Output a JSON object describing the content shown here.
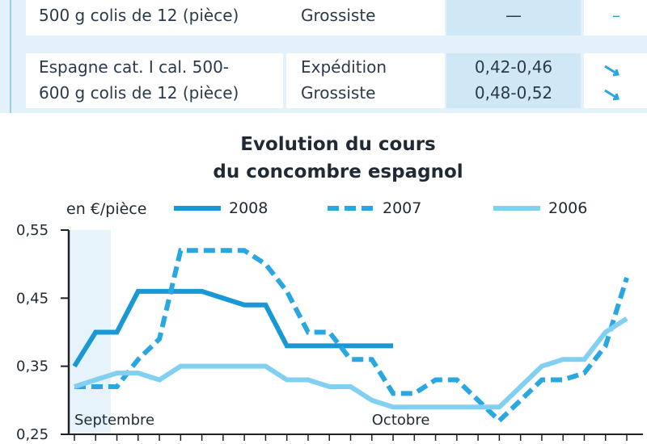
{
  "table": {
    "rows": [
      {
        "product": [
          "500 g colis de 12 (pièce)"
        ],
        "stage": [
          "Grossiste"
        ],
        "price": [
          "—"
        ],
        "trend": "–"
      },
      {
        "product": [
          "Espagne cat. I cal. 500-",
          "600 g colis de 12 (pièce)"
        ],
        "stage": [
          "Expédition",
          "Grossiste"
        ],
        "price": [
          "0,42-0,46",
          "0,48-0,52"
        ]
      }
    ]
  },
  "chart_data": {
    "type": "line",
    "title": [
      "Evolution du cours",
      "du concombre espagnol"
    ],
    "y_label": "en €/pièce",
    "categories": [
      "Septembre",
      null,
      null,
      null,
      null,
      null,
      null,
      null,
      null,
      null,
      null,
      null,
      null,
      null,
      "Octobre",
      null,
      null,
      null,
      null,
      null,
      null,
      null,
      null,
      null,
      null,
      null,
      null
    ],
    "series": [
      {
        "name": "2008",
        "color": "#1a98d5",
        "style": "solid",
        "values": [
          0.35,
          0.4,
          0.4,
          0.46,
          0.46,
          0.46,
          0.46,
          0.45,
          0.44,
          0.44,
          0.38,
          0.38,
          0.38,
          0.38,
          0.38,
          0.38,
          null,
          null,
          null,
          null,
          null,
          null,
          null,
          null,
          null,
          null,
          null
        ]
      },
      {
        "name": "2007",
        "color": "#2aa7e0",
        "style": "dashed",
        "values": [
          0.32,
          0.32,
          0.32,
          0.36,
          0.39,
          0.52,
          0.52,
          0.52,
          0.52,
          0.5,
          0.46,
          0.4,
          0.4,
          0.36,
          0.36,
          0.31,
          0.31,
          0.33,
          0.33,
          0.3,
          0.27,
          0.3,
          0.33,
          0.33,
          0.34,
          0.38,
          0.48
        ]
      },
      {
        "name": "2006",
        "color": "#82d0f1",
        "style": "solid",
        "values": [
          0.32,
          0.33,
          0.34,
          0.34,
          0.33,
          0.35,
          0.35,
          0.35,
          0.35,
          0.35,
          0.33,
          0.33,
          0.32,
          0.32,
          0.3,
          0.29,
          0.29,
          0.29,
          0.29,
          0.29,
          0.29,
          0.32,
          0.35,
          0.36,
          0.36,
          0.4,
          0.42
        ]
      }
    ],
    "ylim": [
      0.25,
      0.55
    ],
    "yticks": [
      {
        "value": 0.55,
        "label": "0,55"
      },
      {
        "value": 0.45,
        "label": "0,45"
      },
      {
        "value": 0.35,
        "label": "0,35"
      },
      {
        "value": 0.25,
        "label": "0,25"
      }
    ],
    "grid": false
  }
}
